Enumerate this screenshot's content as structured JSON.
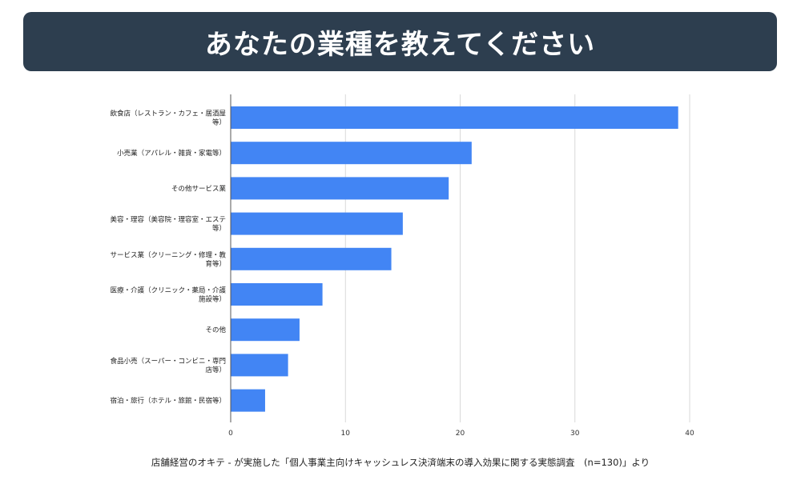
{
  "header": {
    "title": "あなたの業種を教えてください"
  },
  "chart_data": {
    "type": "bar",
    "orientation": "horizontal",
    "title": "あなたの業種を教えてください",
    "xlabel": "",
    "ylabel": "",
    "xlim": [
      0,
      40
    ],
    "xticks": [
      0,
      10,
      20,
      30,
      40
    ],
    "grid": true,
    "categories": [
      [
        "飲食店（レストラン・カフェ・居酒屋",
        "等）"
      ],
      [
        "小売業（アパレル・雑貨・家電等）"
      ],
      [
        "その他サービス業"
      ],
      [
        "美容・理容（美容院・理容室・エステ",
        "等）"
      ],
      [
        "サービス業（クリーニング・修理・教",
        "育等）"
      ],
      [
        "医療・介護（クリニック・薬局・介護",
        "施設等）"
      ],
      [
        "その他"
      ],
      [
        "食品小売（スーパー・コンビニ・専門",
        "店等）"
      ],
      [
        "宿泊・旅行（ホテル・旅館・民宿等）"
      ]
    ],
    "values": [
      39,
      21,
      19,
      15,
      14,
      8,
      6,
      5,
      3
    ],
    "bar_color": "#4285f4",
    "grid_color": "#d9d9d9",
    "axis_color": "#555555"
  },
  "footer": {
    "source": "店舗経営のオキテ - が実施した「個人事業主向けキャッシュレス決済端末の導入効果に関する実態調査　(n=130)」より"
  }
}
